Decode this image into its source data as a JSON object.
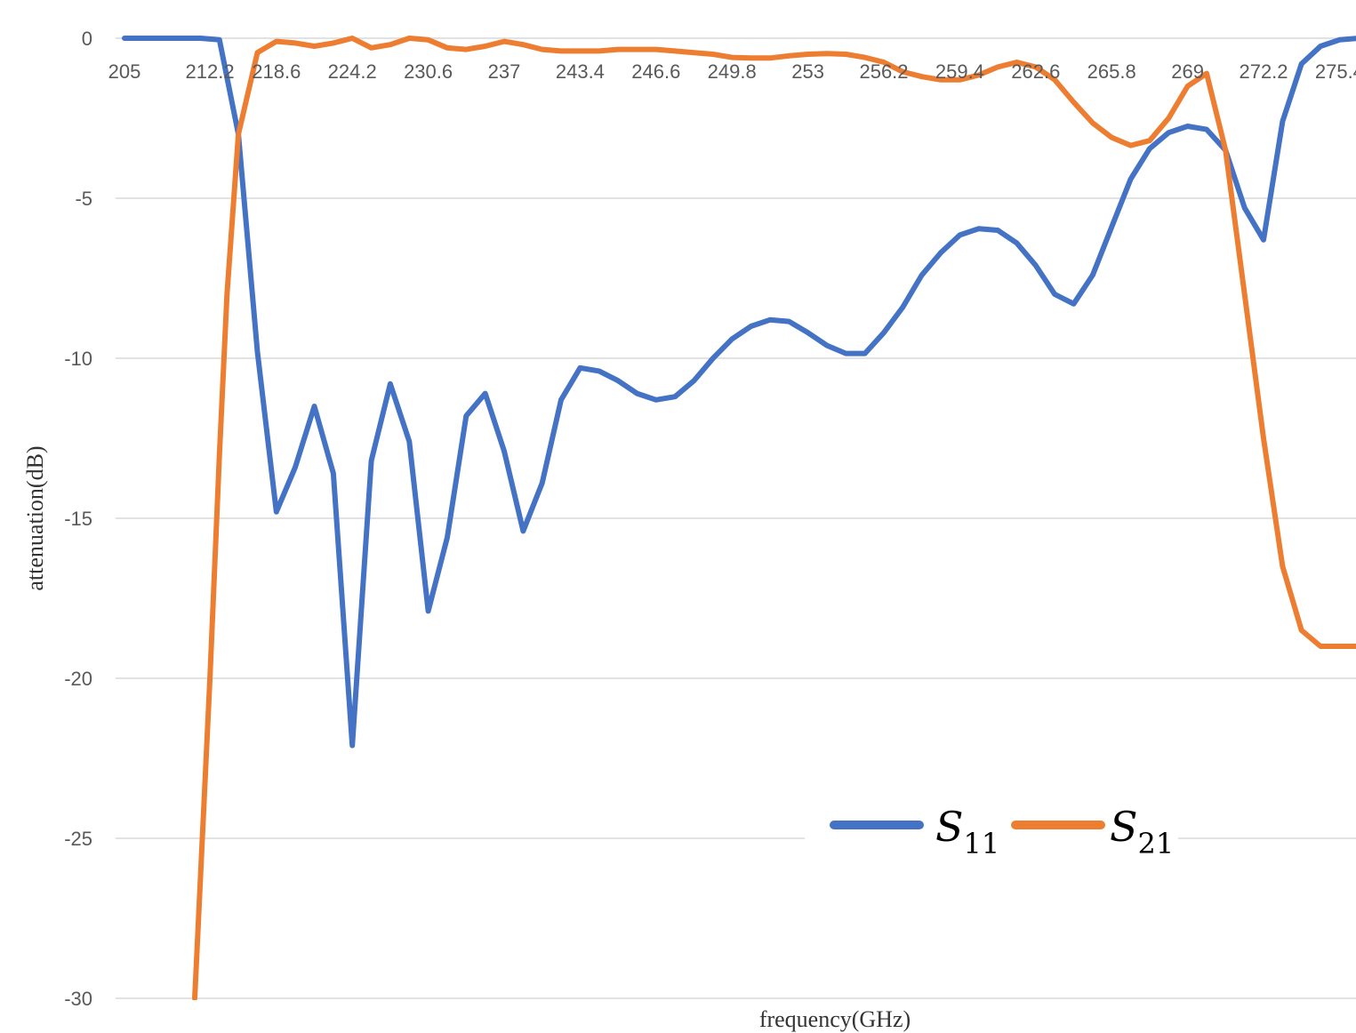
{
  "chart_data": {
    "type": "line",
    "title": "",
    "xlabel": "frequency(GHz)",
    "ylabel": "attenuation(dB)",
    "ylim": [
      -30,
      0
    ],
    "yticks": [
      0,
      -5,
      -10,
      -15,
      -20,
      -25,
      -30
    ],
    "x_tick_labels": [
      "205",
      "212.2",
      "218.6",
      "224.2",
      "230.6",
      "237",
      "243.4",
      "246.6",
      "249.8",
      "253",
      "256.2",
      "259.4",
      "262.6",
      "265.8",
      "269",
      "272.2",
      "275.4"
    ],
    "x_tick_positions": [
      0,
      4.5,
      8,
      12,
      16,
      20,
      24,
      28,
      32,
      36,
      40,
      44,
      48,
      52,
      56,
      60,
      64
    ],
    "x_range": [
      -0.2,
      65.5
    ],
    "grid": true,
    "legend_position": "lower-right",
    "colors": {
      "S11": "#4472C4",
      "S21": "#ED7D31",
      "grid": "#D9D9D9"
    },
    "series": [
      {
        "name": "S11",
        "legend_main": "S",
        "legend_sub": "11",
        "color": "#4472C4",
        "x": [
          0,
          1,
          2,
          3,
          4,
          5,
          6,
          7,
          8,
          9,
          10,
          11,
          12,
          13,
          14,
          15,
          16,
          17,
          18,
          19,
          20,
          21,
          22,
          23,
          24,
          25,
          26,
          27,
          28,
          29,
          30,
          31,
          32,
          33,
          34,
          35,
          36,
          37,
          38,
          39,
          40,
          41,
          42,
          43,
          44,
          45,
          46,
          47,
          48,
          49,
          50,
          51,
          52,
          53,
          54,
          55,
          56,
          57,
          58,
          59,
          60,
          61,
          62,
          63,
          64,
          65,
          65.5
        ],
        "values": [
          0,
          0,
          0,
          0,
          0,
          -0.05,
          -3,
          -9.8,
          -14.8,
          -13.4,
          -11.5,
          -13.6,
          -22.1,
          -13.2,
          -10.8,
          -12.6,
          -17.9,
          -15.6,
          -11.8,
          -11.1,
          -12.9,
          -15.4,
          -13.9,
          -11.3,
          -10.3,
          -10.4,
          -10.7,
          -11.1,
          -11.3,
          -11.2,
          -10.7,
          -10,
          -9.4,
          -9,
          -8.8,
          -8.85,
          -9.2,
          -9.6,
          -9.85,
          -9.85,
          -9.2,
          -8.4,
          -7.4,
          -6.7,
          -6.15,
          -5.95,
          -6.0,
          -6.4,
          -7.1,
          -8.0,
          -8.3,
          -7.4,
          -5.9,
          -4.4,
          -3.45,
          -2.95,
          -2.75,
          -2.85,
          -3.5,
          -5.3,
          -6.3,
          -2.6,
          -0.8,
          -0.25,
          -0.05,
          0,
          0
        ]
      },
      {
        "name": "S21",
        "legend_main": "S",
        "legend_sub": "21",
        "color": "#ED7D31",
        "x": [
          3.7,
          4.5,
          5,
          5.4,
          6,
          7,
          8,
          9,
          10,
          11,
          12,
          13,
          14,
          15,
          16,
          17,
          18,
          19,
          20,
          21,
          22,
          23,
          24,
          25,
          26,
          27,
          28,
          29,
          30,
          31,
          32,
          33,
          34,
          35,
          36,
          37,
          38,
          39,
          40,
          41,
          42,
          43,
          44,
          45,
          46,
          47,
          48,
          49,
          50,
          51,
          52,
          53,
          54,
          55,
          56,
          57,
          58,
          59,
          60,
          61,
          62,
          63,
          64,
          65,
          65.5
        ],
        "values": [
          -30,
          -20,
          -13,
          -8,
          -3,
          -0.45,
          -0.1,
          -0.15,
          -0.25,
          -0.15,
          0,
          -0.3,
          -0.2,
          0,
          -0.05,
          -0.3,
          -0.35,
          -0.25,
          -0.1,
          -0.2,
          -0.35,
          -0.4,
          -0.4,
          -0.4,
          -0.35,
          -0.35,
          -0.35,
          -0.4,
          -0.45,
          -0.5,
          -0.6,
          -0.62,
          -0.62,
          -0.55,
          -0.5,
          -0.48,
          -0.5,
          -0.6,
          -0.75,
          -1.05,
          -1.2,
          -1.3,
          -1.3,
          -1.15,
          -0.9,
          -0.75,
          -0.9,
          -1.3,
          -2.0,
          -2.65,
          -3.1,
          -3.35,
          -3.2,
          -2.5,
          -1.5,
          -1.1,
          -3.5,
          -8.0,
          -12.5,
          -16.5,
          -18.5,
          -19.0,
          -19.0,
          -19.0,
          -19.0
        ]
      }
    ]
  }
}
